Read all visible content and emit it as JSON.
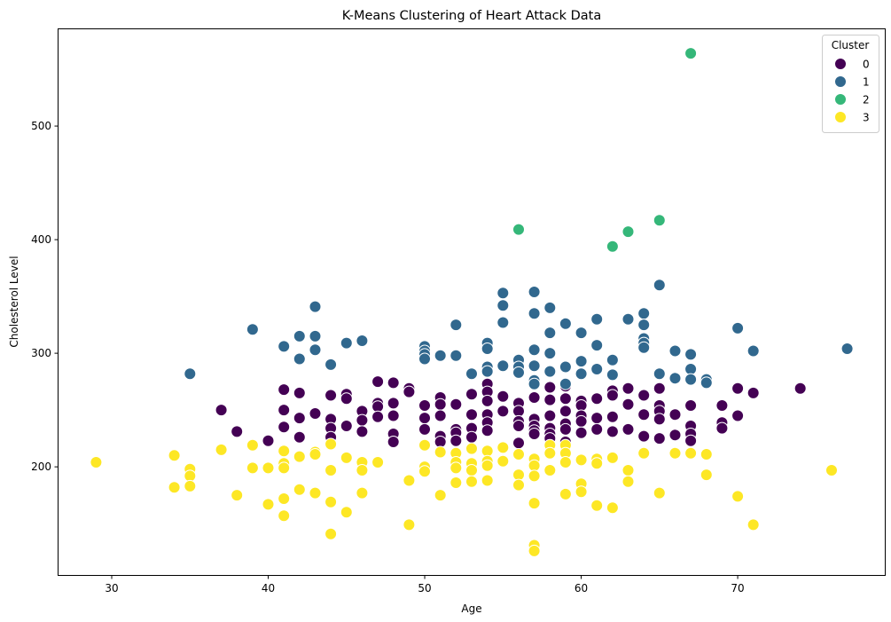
{
  "chart_data": {
    "type": "scatter",
    "title": "K-Means Clustering of Heart Attack Data",
    "xlabel": "Age",
    "ylabel": "Cholesterol Level",
    "xlim": [
      26.6,
      79.4
    ],
    "ylim": [
      104.8,
      585.2
    ],
    "xticks": [
      30,
      40,
      50,
      60,
      70
    ],
    "yticks": [
      200,
      300,
      400,
      500
    ],
    "grid": false,
    "legend": {
      "title": "Cluster",
      "placement": "top-right"
    },
    "series": [
      {
        "name": "0",
        "color": "#440154",
        "points": [
          [
            37,
            250
          ],
          [
            38,
            231
          ],
          [
            40,
            223
          ],
          [
            41,
            268
          ],
          [
            41,
            250
          ],
          [
            41,
            235
          ],
          [
            42,
            265
          ],
          [
            42,
            243
          ],
          [
            42,
            226
          ],
          [
            43,
            247
          ],
          [
            44,
            263
          ],
          [
            44,
            242
          ],
          [
            44,
            234
          ],
          [
            44,
            226
          ],
          [
            45,
            264
          ],
          [
            45,
            260
          ],
          [
            45,
            236
          ],
          [
            46,
            249
          ],
          [
            46,
            241
          ],
          [
            46,
            231
          ],
          [
            47,
            275
          ],
          [
            47,
            256
          ],
          [
            47,
            253
          ],
          [
            47,
            244
          ],
          [
            48,
            274
          ],
          [
            48,
            256
          ],
          [
            48,
            245
          ],
          [
            48,
            229
          ],
          [
            48,
            222
          ],
          [
            49,
            269
          ],
          [
            49,
            266
          ],
          [
            50,
            254
          ],
          [
            50,
            243
          ],
          [
            50,
            233
          ],
          [
            51,
            261
          ],
          [
            51,
            255
          ],
          [
            51,
            245
          ],
          [
            51,
            227
          ],
          [
            51,
            222
          ],
          [
            52,
            255
          ],
          [
            52,
            233
          ],
          [
            52,
            230
          ],
          [
            52,
            223
          ],
          [
            53,
            264
          ],
          [
            53,
            246
          ],
          [
            53,
            234
          ],
          [
            53,
            226
          ],
          [
            54,
            273
          ],
          [
            54,
            266
          ],
          [
            54,
            258
          ],
          [
            54,
            246
          ],
          [
            54,
            239
          ],
          [
            54,
            232
          ],
          [
            55,
            262
          ],
          [
            55,
            249
          ],
          [
            56,
            256
          ],
          [
            56,
            249
          ],
          [
            56,
            240
          ],
          [
            56,
            236
          ],
          [
            56,
            221
          ],
          [
            57,
            261
          ],
          [
            57,
            242
          ],
          [
            57,
            236
          ],
          [
            57,
            232
          ],
          [
            57,
            229
          ],
          [
            58,
            270
          ],
          [
            58,
            259
          ],
          [
            58,
            245
          ],
          [
            58,
            234
          ],
          [
            58,
            229
          ],
          [
            58,
            225
          ],
          [
            59,
            271
          ],
          [
            59,
            260
          ],
          [
            59,
            249
          ],
          [
            59,
            238
          ],
          [
            59,
            233
          ],
          [
            59,
            222
          ],
          [
            60,
            258
          ],
          [
            60,
            254
          ],
          [
            60,
            245
          ],
          [
            60,
            240
          ],
          [
            60,
            230
          ],
          [
            61,
            260
          ],
          [
            61,
            243
          ],
          [
            61,
            233
          ],
          [
            62,
            267
          ],
          [
            62,
            263
          ],
          [
            62,
            244
          ],
          [
            62,
            231
          ],
          [
            63,
            269
          ],
          [
            63,
            255
          ],
          [
            63,
            233
          ],
          [
            64,
            263
          ],
          [
            64,
            246
          ],
          [
            64,
            227
          ],
          [
            65,
            269
          ],
          [
            65,
            254
          ],
          [
            65,
            249
          ],
          [
            65,
            242
          ],
          [
            65,
            225
          ],
          [
            66,
            246
          ],
          [
            66,
            228
          ],
          [
            67,
            254
          ],
          [
            67,
            236
          ],
          [
            67,
            229
          ],
          [
            67,
            223
          ],
          [
            69,
            254
          ],
          [
            69,
            239
          ],
          [
            69,
            234
          ],
          [
            70,
            269
          ],
          [
            70,
            245
          ],
          [
            71,
            265
          ],
          [
            74,
            269
          ]
        ]
      },
      {
        "name": "1",
        "color": "#31688e",
        "points": [
          [
            35,
            282
          ],
          [
            39,
            321
          ],
          [
            41,
            306
          ],
          [
            42,
            315
          ],
          [
            42,
            295
          ],
          [
            43,
            341
          ],
          [
            43,
            315
          ],
          [
            43,
            303
          ],
          [
            44,
            290
          ],
          [
            45,
            309
          ],
          [
            46,
            311
          ],
          [
            50,
            306
          ],
          [
            50,
            302
          ],
          [
            50,
            299
          ],
          [
            50,
            295
          ],
          [
            51,
            298
          ],
          [
            52,
            325
          ],
          [
            52,
            298
          ],
          [
            53,
            282
          ],
          [
            54,
            309
          ],
          [
            54,
            304
          ],
          [
            54,
            288
          ],
          [
            54,
            284
          ],
          [
            55,
            353
          ],
          [
            55,
            342
          ],
          [
            55,
            327
          ],
          [
            55,
            289
          ],
          [
            56,
            294
          ],
          [
            56,
            288
          ],
          [
            56,
            283
          ],
          [
            57,
            354
          ],
          [
            57,
            335
          ],
          [
            57,
            303
          ],
          [
            57,
            289
          ],
          [
            57,
            276
          ],
          [
            57,
            273
          ],
          [
            58,
            340
          ],
          [
            58,
            318
          ],
          [
            58,
            300
          ],
          [
            58,
            284
          ],
          [
            59,
            326
          ],
          [
            59,
            288
          ],
          [
            59,
            273
          ],
          [
            60,
            318
          ],
          [
            60,
            293
          ],
          [
            60,
            282
          ],
          [
            61,
            330
          ],
          [
            61,
            307
          ],
          [
            61,
            286
          ],
          [
            62,
            294
          ],
          [
            62,
            281
          ],
          [
            63,
            330
          ],
          [
            64,
            335
          ],
          [
            64,
            325
          ],
          [
            64,
            313
          ],
          [
            64,
            309
          ],
          [
            64,
            305
          ],
          [
            65,
            360
          ],
          [
            65,
            282
          ],
          [
            66,
            302
          ],
          [
            66,
            278
          ],
          [
            67,
            299
          ],
          [
            67,
            286
          ],
          [
            67,
            277
          ],
          [
            68,
            277
          ],
          [
            68,
            274
          ],
          [
            70,
            322
          ],
          [
            71,
            302
          ],
          [
            77,
            304
          ]
        ]
      },
      {
        "name": "2",
        "color": "#35b779",
        "points": [
          [
            56,
            409
          ],
          [
            62,
            394
          ],
          [
            63,
            407
          ],
          [
            65,
            417
          ],
          [
            67,
            564
          ]
        ]
      },
      {
        "name": "3",
        "color": "#fde725",
        "points": [
          [
            29,
            204
          ],
          [
            34,
            210
          ],
          [
            34,
            182
          ],
          [
            35,
            198
          ],
          [
            35,
            192
          ],
          [
            35,
            183
          ],
          [
            37,
            215
          ],
          [
            38,
            175
          ],
          [
            39,
            219
          ],
          [
            39,
            199
          ],
          [
            40,
            199
          ],
          [
            40,
            167
          ],
          [
            41,
            214
          ],
          [
            41,
            203
          ],
          [
            41,
            199
          ],
          [
            41,
            172
          ],
          [
            41,
            157
          ],
          [
            42,
            209
          ],
          [
            42,
            180
          ],
          [
            43,
            213
          ],
          [
            43,
            211
          ],
          [
            43,
            177
          ],
          [
            44,
            220
          ],
          [
            44,
            197
          ],
          [
            44,
            169
          ],
          [
            44,
            141
          ],
          [
            45,
            208
          ],
          [
            45,
            160
          ],
          [
            46,
            204
          ],
          [
            46,
            197
          ],
          [
            46,
            177
          ],
          [
            47,
            204
          ],
          [
            49,
            188
          ],
          [
            49,
            149
          ],
          [
            50,
            219
          ],
          [
            50,
            200
          ],
          [
            50,
            196
          ],
          [
            51,
            213
          ],
          [
            51,
            175
          ],
          [
            52,
            212
          ],
          [
            52,
            204
          ],
          [
            52,
            199
          ],
          [
            52,
            186
          ],
          [
            53,
            216
          ],
          [
            53,
            203
          ],
          [
            53,
            197
          ],
          [
            53,
            187
          ],
          [
            54,
            214
          ],
          [
            54,
            205
          ],
          [
            54,
            201
          ],
          [
            54,
            188
          ],
          [
            55,
            217
          ],
          [
            55,
            205
          ],
          [
            56,
            211
          ],
          [
            56,
            193
          ],
          [
            56,
            184
          ],
          [
            57,
            207
          ],
          [
            57,
            201
          ],
          [
            57,
            192
          ],
          [
            57,
            168
          ],
          [
            57,
            131
          ],
          [
            57,
            126
          ],
          [
            58,
            219
          ],
          [
            58,
            212
          ],
          [
            58,
            197
          ],
          [
            59,
            219
          ],
          [
            59,
            212
          ],
          [
            59,
            204
          ],
          [
            59,
            176
          ],
          [
            60,
            206
          ],
          [
            60,
            185
          ],
          [
            60,
            178
          ],
          [
            61,
            207
          ],
          [
            61,
            203
          ],
          [
            61,
            166
          ],
          [
            62,
            208
          ],
          [
            62,
            164
          ],
          [
            63,
            197
          ],
          [
            63,
            187
          ],
          [
            64,
            212
          ],
          [
            65,
            177
          ],
          [
            66,
            212
          ],
          [
            67,
            212
          ],
          [
            68,
            211
          ],
          [
            68,
            193
          ],
          [
            70,
            174
          ],
          [
            71,
            149
          ],
          [
            76,
            197
          ]
        ]
      }
    ]
  }
}
